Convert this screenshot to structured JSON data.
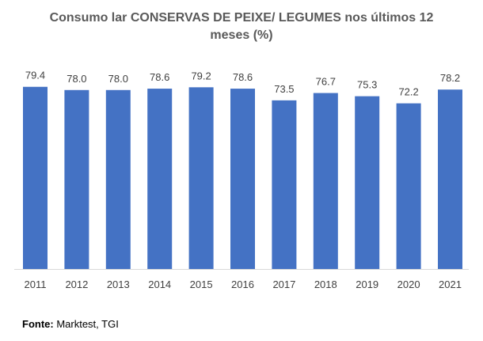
{
  "chart_data": {
    "type": "bar",
    "title": "Consumo lar CONSERVAS DE PEIXE/ LEGUMES nos últimos 12 meses (%)",
    "categories": [
      "2011",
      "2012",
      "2013",
      "2014",
      "2015",
      "2016",
      "2017",
      "2018",
      "2019",
      "2020",
      "2021"
    ],
    "values": [
      79.4,
      78.0,
      78.0,
      78.6,
      79.2,
      78.6,
      73.5,
      76.7,
      75.3,
      72.2,
      78.2
    ],
    "value_labels": [
      "79.4",
      "78.0",
      "78.0",
      "78.6",
      "79.2",
      "78.6",
      "73.5",
      "76.7",
      "75.3",
      "72.2",
      "78.2"
    ],
    "xlabel": "",
    "ylabel": "",
    "ylim": [
      0,
      80
    ],
    "grid": false,
    "color": "#4472C4"
  },
  "source": {
    "label": "Fonte:",
    "text": " Marktest, TGI"
  }
}
